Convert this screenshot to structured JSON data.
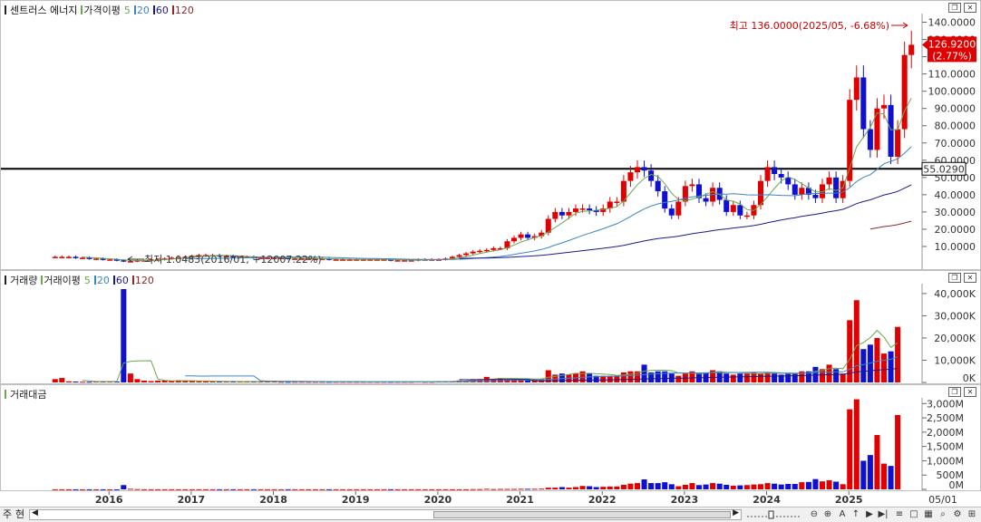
{
  "price_pane": {
    "title": "센트러스 에너지",
    "legend": [
      {
        "label": "가격이평",
        "color": "#6aa84f"
      },
      {
        "label": "5",
        "color": "#6aa84f"
      },
      {
        "label": "20",
        "color": "#3d85c6"
      },
      {
        "label": "60",
        "color": "#1a1a8c"
      },
      {
        "label": "120",
        "color": "#8e2a2a"
      }
    ],
    "high_annotation": "최고 136.0000(2025/05, -6.68%)",
    "low_annotation": "최저 1.0483(2016/01, +12007.22%)",
    "current_price": "126.9200",
    "current_change": "(2.77%)",
    "hline_value": "55.0290",
    "y_ticks": [
      "140.0000",
      "130.0000",
      "120.0000",
      "110.0000",
      "100.0000",
      "90.0000",
      "80.0000",
      "70.0000",
      "60.0000",
      "50.0000",
      "40.0000",
      "30.0000",
      "20.0000",
      "10.0000"
    ]
  },
  "volume_pane": {
    "title": "거래량",
    "legend": [
      {
        "label": "거래이평",
        "color": "#6aa84f"
      },
      {
        "label": "5",
        "color": "#6aa84f"
      },
      {
        "label": "20",
        "color": "#3d85c6"
      },
      {
        "label": "60",
        "color": "#1a1a8c"
      },
      {
        "label": "120",
        "color": "#8e2a2a"
      }
    ],
    "y_ticks": [
      "40,000K",
      "30,000K",
      "20,000K",
      "10,000K",
      "0K"
    ]
  },
  "amount_pane": {
    "title": "거래대금",
    "y_ticks": [
      "3,000M",
      "2,500M",
      "2,000M",
      "1,500M",
      "1,000M",
      "500M",
      "0M"
    ]
  },
  "x_axis": {
    "years": [
      "2016",
      "2017",
      "2018",
      "2019",
      "2020",
      "2021",
      "2022",
      "2023",
      "2024",
      "2025"
    ],
    "last_date": "05/01"
  },
  "bottom_bar": {
    "mode_a": "주",
    "mode_b": "현"
  },
  "colors": {
    "up": "#e00000",
    "down": "#1010d0",
    "ma5": "#6aa84f",
    "ma20": "#3d85c6",
    "ma60": "#1a1a8c",
    "ma120": "#8e2a2a"
  },
  "chart_data": [
    {
      "type": "candlestick",
      "title": "센트러스 에너지",
      "x_period": "monthly",
      "x_range": [
        "2015-05",
        "2025-05"
      ],
      "ylim": [
        0,
        145
      ],
      "highest": {
        "value": 136.0,
        "date": "2025/05"
      },
      "lowest": {
        "value": 1.0483,
        "date": "2016/01"
      },
      "last_close": 126.92,
      "horizontal_line": 55.029,
      "closes": [
        4,
        4,
        4,
        3.5,
        3.5,
        3,
        3,
        2.5,
        2.5,
        2,
        1.5,
        1.5,
        2,
        2,
        2.5,
        2.5,
        3,
        3.5,
        3.5,
        4,
        4.5,
        5,
        5,
        5,
        4.5,
        4.5,
        4,
        4,
        4,
        3.5,
        3.5,
        3.5,
        3.5,
        3.5,
        3,
        3,
        3,
        3,
        3,
        3,
        2.5,
        2.5,
        2.5,
        2.5,
        2.5,
        2.5,
        2.5,
        2.5,
        2.5,
        2,
        2,
        2,
        2,
        2.5,
        2.5,
        2.5,
        2.5,
        3,
        4,
        5,
        6,
        7,
        7.5,
        8,
        9,
        9,
        13,
        15,
        17,
        15,
        16,
        18,
        26,
        30,
        28,
        30,
        32,
        32,
        31,
        30,
        32,
        36,
        36,
        48,
        53,
        56,
        54,
        48,
        42,
        32,
        28,
        36,
        45,
        46,
        38,
        36,
        44,
        37,
        30,
        34,
        28,
        28,
        34,
        48,
        56,
        52,
        50,
        46,
        40,
        44,
        40,
        38,
        46,
        50,
        38,
        48,
        95,
        108,
        78,
        66,
        90,
        92,
        62,
        78,
        121,
        126.92
      ],
      "ma_series": [
        "5",
        "20",
        "60",
        "120"
      ]
    },
    {
      "type": "bar",
      "title": "거래량",
      "unit": "K",
      "ylim": [
        0,
        42000
      ],
      "values": [
        1500,
        2000,
        500,
        400,
        300,
        300,
        500,
        500,
        500,
        400,
        42000,
        4000,
        1500,
        800,
        600,
        800,
        900,
        600,
        1000,
        700,
        600,
        500,
        500,
        500,
        400,
        400,
        400,
        400,
        500,
        400,
        400,
        500,
        400,
        300,
        300,
        300,
        300,
        300,
        300,
        300,
        300,
        300,
        300,
        300,
        300,
        300,
        300,
        300,
        300,
        300,
        300,
        300,
        300,
        400,
        300,
        300,
        500,
        500,
        600,
        900,
        800,
        1500,
        1500,
        2500,
        1500,
        2000,
        1500,
        1500,
        1800,
        1500,
        1500,
        1500,
        5500,
        3500,
        4000,
        3500,
        4000,
        5000,
        4000,
        3000,
        3000,
        3000,
        3000,
        4500,
        5000,
        5000,
        8000,
        4500,
        5000,
        5000,
        4000,
        3000,
        4000,
        5000,
        4000,
        4500,
        5500,
        5000,
        4000,
        3500,
        4000,
        4000,
        4500,
        4000,
        4500,
        4000,
        3500,
        4000,
        4000,
        5000,
        5000,
        7000,
        6000,
        8000,
        6000,
        4000,
        28000,
        37000,
        15000,
        17000,
        20000,
        13000,
        14000,
        25000
      ],
      "ma_series": [
        "5",
        "20",
        "60",
        "120"
      ]
    },
    {
      "type": "bar",
      "title": "거래대금",
      "unit": "M",
      "ylim": [
        0,
        3200
      ],
      "values": [
        5,
        5,
        3,
        3,
        3,
        3,
        3,
        3,
        3,
        3,
        150,
        20,
        10,
        5,
        5,
        5,
        5,
        5,
        5,
        5,
        5,
        5,
        5,
        5,
        5,
        5,
        5,
        5,
        5,
        5,
        5,
        5,
        5,
        5,
        5,
        5,
        5,
        5,
        5,
        5,
        5,
        5,
        5,
        5,
        5,
        5,
        5,
        5,
        5,
        5,
        5,
        5,
        5,
        5,
        5,
        5,
        5,
        5,
        5,
        5,
        5,
        10,
        10,
        20,
        10,
        15,
        15,
        15,
        20,
        20,
        20,
        25,
        60,
        60,
        80,
        60,
        80,
        120,
        110,
        80,
        90,
        100,
        100,
        160,
        200,
        220,
        350,
        220,
        220,
        250,
        180,
        110,
        160,
        220,
        150,
        170,
        220,
        200,
        160,
        130,
        140,
        150,
        170,
        180,
        220,
        200,
        170,
        190,
        190,
        250,
        260,
        360,
        280,
        320,
        270,
        180,
        2800,
        3150,
        1000,
        1200,
        1900,
        900,
        820,
        2600
      ]
    }
  ]
}
